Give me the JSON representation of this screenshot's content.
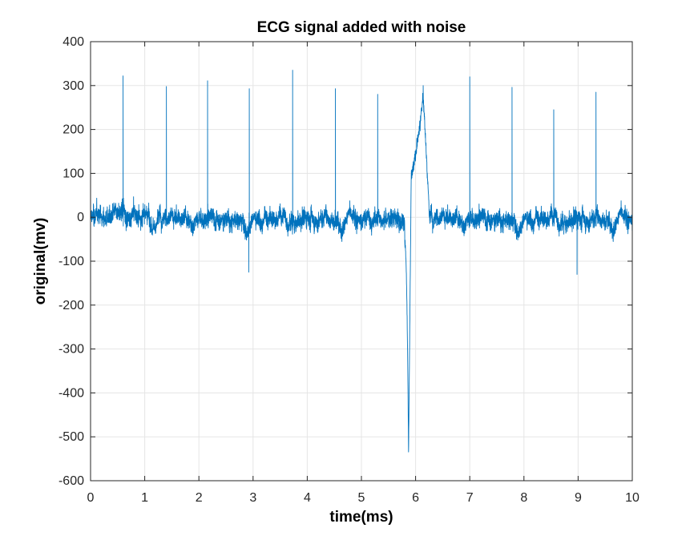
{
  "chart_data": {
    "type": "line",
    "title": "ECG signal added with noise",
    "xlabel": "time(ms)",
    "ylabel": "original(mv)",
    "xlim": [
      0,
      10
    ],
    "ylim": [
      -600,
      400
    ],
    "xticks": [
      0,
      1,
      2,
      3,
      4,
      5,
      6,
      7,
      8,
      9,
      10
    ],
    "yticks": [
      400,
      300,
      200,
      100,
      0,
      -100,
      -200,
      -300,
      -400,
      -500,
      -600
    ],
    "grid": true,
    "line_color": "#0072BD",
    "noise_level": {
      "typical_band": [
        -60,
        60
      ],
      "extremes": [
        -130,
        95
      ]
    },
    "spikes": [
      {
        "x": 0.6,
        "y": 322
      },
      {
        "x": 1.4,
        "y": 298
      },
      {
        "x": 2.16,
        "y": 311
      },
      {
        "x": 2.93,
        "y": 293
      },
      {
        "x": 3.73,
        "y": 335
      },
      {
        "x": 4.52,
        "y": 293
      },
      {
        "x": 5.3,
        "y": 280
      },
      {
        "x": 7.0,
        "y": 320
      },
      {
        "x": 7.78,
        "y": 296
      },
      {
        "x": 8.55,
        "y": 245
      },
      {
        "x": 9.33,
        "y": 285
      }
    ],
    "dips": [
      {
        "x": 2.92,
        "y": -125
      },
      {
        "x": 8.98,
        "y": -130
      }
    ],
    "artifact": {
      "dip_start": {
        "x": 5.8,
        "y": -60
      },
      "dip_min": {
        "x": 5.87,
        "y": -535
      },
      "jump": {
        "x": 5.92,
        "y": 100
      },
      "peak": {
        "x": 6.14,
        "y": 300
      },
      "recover": {
        "x": 6.25,
        "y": 20
      }
    }
  }
}
